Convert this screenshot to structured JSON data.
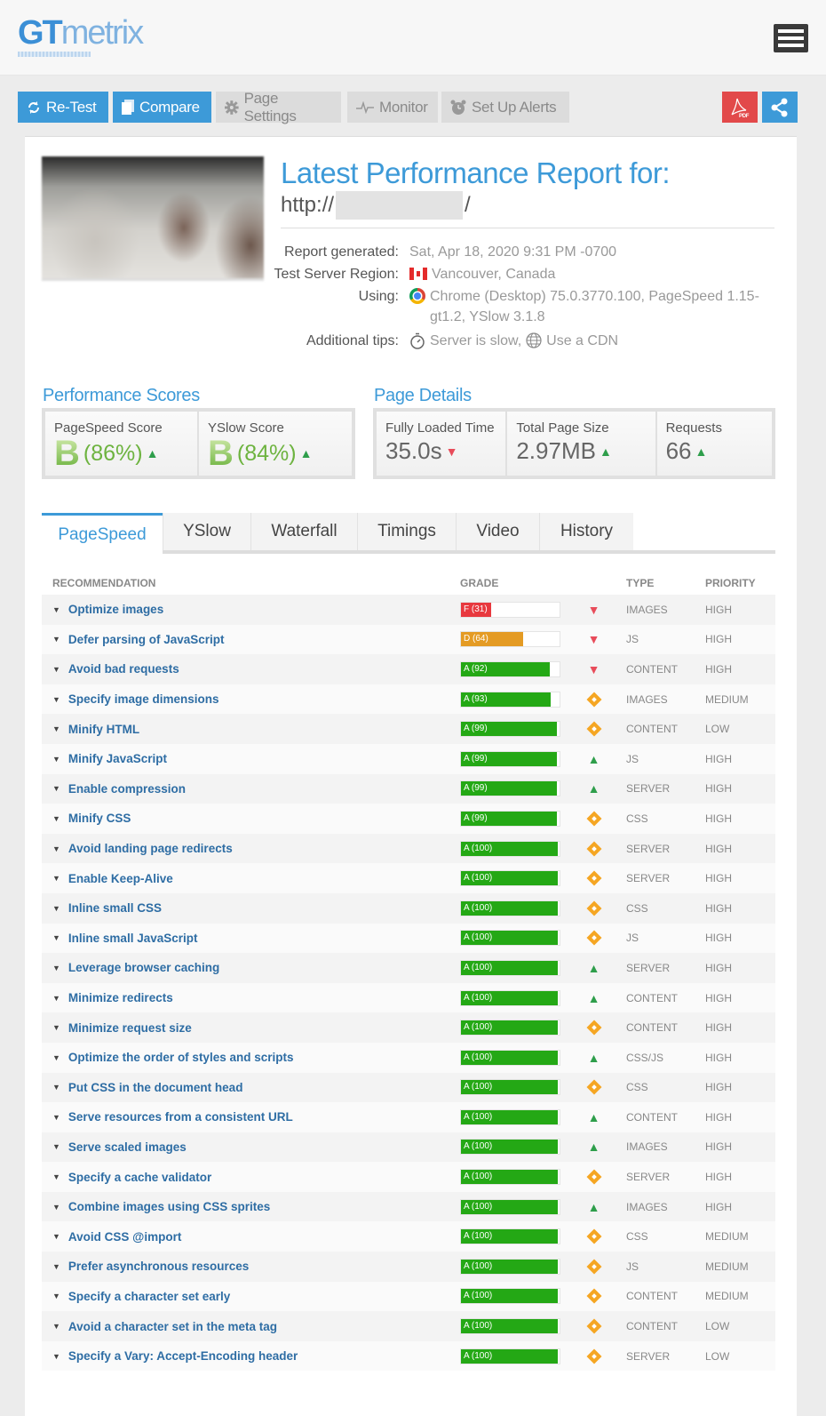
{
  "header": {
    "logo_gt": "GT",
    "logo_metrix": "metrix",
    "menu_icon": "hamburger-icon"
  },
  "toolbar": {
    "retest": {
      "label": "Re-Test",
      "icon": "refresh-icon"
    },
    "compare": {
      "label": "Compare",
      "icon": "copy-icon"
    },
    "page_settings": {
      "label": "Page Settings",
      "icon": "gear-icon"
    },
    "monitor": {
      "label": "Monitor",
      "icon": "pulse-icon"
    },
    "alerts": {
      "label": "Set Up Alerts",
      "icon": "alarm-clock-icon"
    },
    "pdf": {
      "label": "PDF",
      "icon": "pdf-icon",
      "color": "#e2494a"
    },
    "share": {
      "icon": "share-icon",
      "color": "#3d9ad8"
    }
  },
  "report": {
    "title": "Latest Performance Report for:",
    "url_prefix": "http://",
    "url_suffix": "/",
    "meta": {
      "generated_label": "Report generated:",
      "generated_value": "Sat, Apr 18, 2020 9:31 PM -0700",
      "region_label": "Test Server Region:",
      "region_value": "Vancouver, Canada",
      "using_label": "Using:",
      "using_value": "Chrome (Desktop) 75.0.3770.100, PageSpeed 1.15-gt1.2, YSlow 3.1.8",
      "tips_label": "Additional tips:",
      "tip_1": "Server is slow,",
      "tip_2": "Use a CDN"
    }
  },
  "performance_scores": {
    "heading": "Performance Scores",
    "pagespeed": {
      "label": "PageSpeed Score",
      "grade": "B",
      "percent": "(86%)",
      "trend": "up"
    },
    "yslow": {
      "label": "YSlow Score",
      "grade": "B",
      "percent": "(84%)",
      "trend": "up"
    }
  },
  "page_details": {
    "heading": "Page Details",
    "loaded": {
      "label": "Fully Loaded Time",
      "value": "35.0s",
      "trend": "down"
    },
    "size": {
      "label": "Total Page Size",
      "value": "2.97MB",
      "trend": "up"
    },
    "requests": {
      "label": "Requests",
      "value": "66",
      "trend": "up"
    }
  },
  "tabs": [
    {
      "label": "PageSpeed",
      "active": true
    },
    {
      "label": "YSlow"
    },
    {
      "label": "Waterfall"
    },
    {
      "label": "Timings"
    },
    {
      "label": "Video"
    },
    {
      "label": "History"
    }
  ],
  "table": {
    "headers": {
      "recommendation": "RECOMMENDATION",
      "grade": "GRADE",
      "type": "TYPE",
      "priority": "PRIORITY"
    },
    "colors": {
      "F": "#e8393f",
      "D": "#e49b24",
      "A": "#24a815"
    },
    "rows": [
      {
        "name": "Optimize images",
        "grade": "F (31)",
        "score": 31,
        "letter": "F",
        "trend": "down",
        "type": "IMAGES",
        "priority": "HIGH"
      },
      {
        "name": "Defer parsing of JavaScript",
        "grade": "D (64)",
        "score": 64,
        "letter": "D",
        "trend": "down",
        "type": "JS",
        "priority": "HIGH"
      },
      {
        "name": "Avoid bad requests",
        "grade": "A (92)",
        "score": 92,
        "letter": "A",
        "trend": "down",
        "type": "CONTENT",
        "priority": "HIGH"
      },
      {
        "name": "Specify image dimensions",
        "grade": "A (93)",
        "score": 93,
        "letter": "A",
        "trend": "neutral",
        "type": "IMAGES",
        "priority": "MEDIUM"
      },
      {
        "name": "Minify HTML",
        "grade": "A (99)",
        "score": 99,
        "letter": "A",
        "trend": "neutral",
        "type": "CONTENT",
        "priority": "LOW"
      },
      {
        "name": "Minify JavaScript",
        "grade": "A (99)",
        "score": 99,
        "letter": "A",
        "trend": "up",
        "type": "JS",
        "priority": "HIGH"
      },
      {
        "name": "Enable compression",
        "grade": "A (99)",
        "score": 99,
        "letter": "A",
        "trend": "up",
        "type": "SERVER",
        "priority": "HIGH"
      },
      {
        "name": "Minify CSS",
        "grade": "A (99)",
        "score": 99,
        "letter": "A",
        "trend": "neutral",
        "type": "CSS",
        "priority": "HIGH"
      },
      {
        "name": "Avoid landing page redirects",
        "grade": "A (100)",
        "score": 100,
        "letter": "A",
        "trend": "neutral",
        "type": "SERVER",
        "priority": "HIGH"
      },
      {
        "name": "Enable Keep-Alive",
        "grade": "A (100)",
        "score": 100,
        "letter": "A",
        "trend": "neutral",
        "type": "SERVER",
        "priority": "HIGH"
      },
      {
        "name": "Inline small CSS",
        "grade": "A (100)",
        "score": 100,
        "letter": "A",
        "trend": "neutral",
        "type": "CSS",
        "priority": "HIGH"
      },
      {
        "name": "Inline small JavaScript",
        "grade": "A (100)",
        "score": 100,
        "letter": "A",
        "trend": "neutral",
        "type": "JS",
        "priority": "HIGH"
      },
      {
        "name": "Leverage browser caching",
        "grade": "A (100)",
        "score": 100,
        "letter": "A",
        "trend": "up",
        "type": "SERVER",
        "priority": "HIGH"
      },
      {
        "name": "Minimize redirects",
        "grade": "A (100)",
        "score": 100,
        "letter": "A",
        "trend": "up",
        "type": "CONTENT",
        "priority": "HIGH"
      },
      {
        "name": "Minimize request size",
        "grade": "A (100)",
        "score": 100,
        "letter": "A",
        "trend": "neutral",
        "type": "CONTENT",
        "priority": "HIGH"
      },
      {
        "name": "Optimize the order of styles and scripts",
        "grade": "A (100)",
        "score": 100,
        "letter": "A",
        "trend": "up",
        "type": "CSS/JS",
        "priority": "HIGH"
      },
      {
        "name": "Put CSS in the document head",
        "grade": "A (100)",
        "score": 100,
        "letter": "A",
        "trend": "neutral",
        "type": "CSS",
        "priority": "HIGH"
      },
      {
        "name": "Serve resources from a consistent URL",
        "grade": "A (100)",
        "score": 100,
        "letter": "A",
        "trend": "up",
        "type": "CONTENT",
        "priority": "HIGH"
      },
      {
        "name": "Serve scaled images",
        "grade": "A (100)",
        "score": 100,
        "letter": "A",
        "trend": "up",
        "type": "IMAGES",
        "priority": "HIGH"
      },
      {
        "name": "Specify a cache validator",
        "grade": "A (100)",
        "score": 100,
        "letter": "A",
        "trend": "neutral",
        "type": "SERVER",
        "priority": "HIGH"
      },
      {
        "name": "Combine images using CSS sprites",
        "grade": "A (100)",
        "score": 100,
        "letter": "A",
        "trend": "up",
        "type": "IMAGES",
        "priority": "HIGH"
      },
      {
        "name": "Avoid CSS @import",
        "grade": "A (100)",
        "score": 100,
        "letter": "A",
        "trend": "neutral",
        "type": "CSS",
        "priority": "MEDIUM"
      },
      {
        "name": "Prefer asynchronous resources",
        "grade": "A (100)",
        "score": 100,
        "letter": "A",
        "trend": "neutral",
        "type": "JS",
        "priority": "MEDIUM"
      },
      {
        "name": "Specify a character set early",
        "grade": "A (100)",
        "score": 100,
        "letter": "A",
        "trend": "neutral",
        "type": "CONTENT",
        "priority": "MEDIUM"
      },
      {
        "name": "Avoid a character set in the meta tag",
        "grade": "A (100)",
        "score": 100,
        "letter": "A",
        "trend": "neutral",
        "type": "CONTENT",
        "priority": "LOW"
      },
      {
        "name": "Specify a Vary: Accept-Encoding header",
        "grade": "A (100)",
        "score": 100,
        "letter": "A",
        "trend": "neutral",
        "type": "SERVER",
        "priority": "LOW"
      }
    ]
  }
}
